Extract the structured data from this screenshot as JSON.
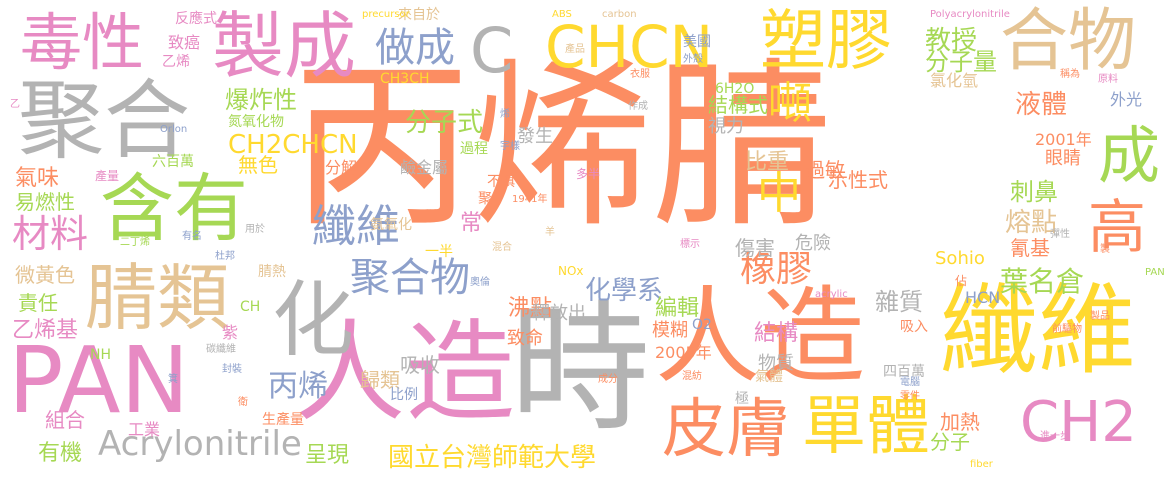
{
  "cloud": {
    "words": [
      {
        "text": "丙烯腈",
        "color": "#fc8d62"
      },
      {
        "text": "時",
        "color": "#b3b3b3"
      },
      {
        "text": "人造",
        "color": "#e78ac3"
      },
      {
        "text": "纖維",
        "color": "#ffd92f"
      },
      {
        "text": "PAN",
        "color": "#e78ac3"
      },
      {
        "text": "人造",
        "color": "#fc8d62"
      },
      {
        "text": "聚合",
        "color": "#b3b3b3"
      },
      {
        "text": "含有",
        "color": "#a6d854"
      },
      {
        "text": "毒性",
        "color": "#e78ac3"
      },
      {
        "text": "製成",
        "color": "#e78ac3"
      },
      {
        "text": "腈類",
        "color": "#e5c494"
      },
      {
        "text": "化",
        "color": "#b3b3b3"
      },
      {
        "text": "C",
        "color": "#b3b3b3"
      },
      {
        "text": "CHCN",
        "color": "#ffd92f"
      },
      {
        "text": "塑膠",
        "color": "#ffd92f"
      },
      {
        "text": "合物",
        "color": "#e5c494"
      },
      {
        "text": "成",
        "color": "#a6d854"
      },
      {
        "text": "高",
        "color": "#fc8d62"
      },
      {
        "text": "皮膚",
        "color": "#fc8d62"
      },
      {
        "text": "單體",
        "color": "#ffd92f"
      },
      {
        "text": "CH2",
        "color": "#e78ac3"
      },
      {
        "text": "做成",
        "color": "#8da0cb"
      },
      {
        "text": "噸",
        "color": "#ffd92f"
      },
      {
        "text": "中",
        "color": "#ffd92f"
      },
      {
        "text": "纖維",
        "color": "#8da0cb"
      },
      {
        "text": "聚合物",
        "color": "#8da0cb"
      },
      {
        "text": "橡膠",
        "color": "#fc8d62"
      },
      {
        "text": "材料",
        "color": "#e78ac3"
      },
      {
        "text": "Acrylonitrile",
        "color": "#b3b3b3"
      },
      {
        "text": "丙烯",
        "color": "#8da0cb"
      },
      {
        "text": "國立台灣師範大學",
        "color": "#ffd92f"
      },
      {
        "text": "分子式",
        "color": "#a6d854"
      },
      {
        "text": "CH2CHCN",
        "color": "#ffd92f"
      },
      {
        "text": "化學系",
        "color": "#8da0cb"
      },
      {
        "text": "爆炸性",
        "color": "#a6d854"
      },
      {
        "text": "教授",
        "color": "#a6d854"
      },
      {
        "text": "分子量",
        "color": "#a6d854"
      },
      {
        "text": "液體",
        "color": "#fc8d62"
      },
      {
        "text": "刺鼻",
        "color": "#a6d854"
      },
      {
        "text": "熔點",
        "color": "#e5c494"
      },
      {
        "text": "葉名倉",
        "color": "#a6d854"
      },
      {
        "text": "雜質",
        "color": "#b3b3b3"
      },
      {
        "text": "沸點",
        "color": "#fc8d62"
      },
      {
        "text": "編輯",
        "color": "#a6d854"
      },
      {
        "text": "結構",
        "color": "#e78ac3"
      },
      {
        "text": "結構式",
        "color": "#a6d854"
      },
      {
        "text": "氣味",
        "color": "#fc8d62"
      },
      {
        "text": "易燃性",
        "color": "#a6d854"
      },
      {
        "text": "微黃色",
        "color": "#e5c494"
      },
      {
        "text": "責任",
        "color": "#a6d854"
      },
      {
        "text": "乙烯基",
        "color": "#e78ac3"
      },
      {
        "text": "組合",
        "color": "#e78ac3"
      },
      {
        "text": "有機",
        "color": "#a6d854"
      },
      {
        "text": "工業",
        "color": "#e78ac3"
      },
      {
        "text": "呈現",
        "color": "#a6d854"
      },
      {
        "text": "比重",
        "color": "#e5c494"
      },
      {
        "text": "無色",
        "color": "#ffd92f"
      },
      {
        "text": "加熱",
        "color": "#fc8d62"
      },
      {
        "text": "分子",
        "color": "#a6d854"
      },
      {
        "text": "Sohio",
        "color": "#ffd92f"
      },
      {
        "text": "HCN",
        "color": "#8da0cb"
      },
      {
        "text": "氰基",
        "color": "#fc8d62"
      },
      {
        "text": "過敏",
        "color": "#fc8d62"
      },
      {
        "text": "傷害",
        "color": "#b3b3b3"
      },
      {
        "text": "危險",
        "color": "#b3b3b3"
      },
      {
        "text": "示性式",
        "color": "#fc8d62"
      },
      {
        "text": "分解",
        "color": "#fc8d62"
      },
      {
        "text": "吸收",
        "color": "#b3b3b3"
      },
      {
        "text": "歸類",
        "color": "#e5c494"
      },
      {
        "text": "物質",
        "color": "#b3b3b3"
      },
      {
        "text": "模糊",
        "color": "#fc8d62"
      },
      {
        "text": "2005年",
        "color": "#fc8d62"
      },
      {
        "text": "2001年",
        "color": "#fc8d62"
      },
      {
        "text": "眼睛",
        "color": "#fc8d62"
      },
      {
        "text": "視力",
        "color": "#b3b3b3"
      },
      {
        "text": "發生",
        "color": "#b3b3b3"
      },
      {
        "text": "過程",
        "color": "#a6d854"
      },
      {
        "text": "鹼金屬",
        "color": "#b3b3b3"
      },
      {
        "text": "常",
        "color": "#e78ac3"
      },
      {
        "text": "6H2O",
        "color": "#a6d854"
      },
      {
        "text": "O2",
        "color": "#8da0cb"
      },
      {
        "text": "致命",
        "color": "#fc8d62"
      },
      {
        "text": "釋放出",
        "color": "#b3b3b3"
      },
      {
        "text": "氯化氫",
        "color": "#e5c494"
      },
      {
        "text": "外光",
        "color": "#8da0cb"
      },
      {
        "text": "美國",
        "color": "#8da0cb"
      },
      {
        "text": "來自於",
        "color": "#e5c494"
      },
      {
        "text": "CH3CH",
        "color": "#ffd92f"
      },
      {
        "text": "反應式",
        "color": "#e78ac3"
      },
      {
        "text": "致癌",
        "color": "#e78ac3"
      },
      {
        "text": "乙烯",
        "color": "#e78ac3"
      },
      {
        "text": "氮氧化物",
        "color": "#a6d854"
      },
      {
        "text": "六百萬",
        "color": "#a6d854"
      },
      {
        "text": "產量",
        "color": "#e78ac3"
      },
      {
        "text": "腈熱",
        "color": "#e5c494"
      },
      {
        "text": "紫",
        "color": "#e78ac3"
      },
      {
        "text": "生產量",
        "color": "#fc8d62"
      },
      {
        "text": "比例",
        "color": "#8da0cb"
      },
      {
        "text": "四百萬",
        "color": "#b3b3b3"
      },
      {
        "text": "氣體",
        "color": "#e5c494"
      },
      {
        "text": "極",
        "color": "#b3b3b3"
      },
      {
        "text": "吸入",
        "color": "#fc8d62"
      },
      {
        "text": "一半",
        "color": "#ffd92f"
      },
      {
        "text": "NOx",
        "color": "#ffd92f"
      },
      {
        "text": "多半",
        "color": "#e78ac3"
      },
      {
        "text": "不慎",
        "color": "#fc8d62"
      },
      {
        "text": "氨氧化",
        "color": "#e5c494"
      },
      {
        "text": "CH",
        "color": "#a6d854"
      },
      {
        "text": "NH",
        "color": "#a6d854"
      },
      {
        "text": "precursor",
        "color": "#ffd92f"
      },
      {
        "text": "ABS",
        "color": "#ffd92f"
      },
      {
        "text": "carbon",
        "color": "#e5c494"
      },
      {
        "text": "Polyacrylonitrile",
        "color": "#e78ac3"
      },
      {
        "text": "acrylic",
        "color": "#e78ac3"
      },
      {
        "text": "Orlon",
        "color": "#8da0cb"
      },
      {
        "text": "fiber",
        "color": "#ffd92f"
      },
      {
        "text": "PAN",
        "color": "#a6d854"
      },
      {
        "text": "產品",
        "color": "#e5c494"
      },
      {
        "text": "外殼",
        "color": "#8da0cb"
      },
      {
        "text": "衣服",
        "color": "#fc8d62"
      },
      {
        "text": "稱為",
        "color": "#fc8d62"
      },
      {
        "text": "原料",
        "color": "#e78ac3"
      },
      {
        "text": "作成",
        "color": "#b3b3b3"
      },
      {
        "text": "宇樣",
        "color": "#8da0cb"
      },
      {
        "text": "1941年",
        "color": "#fc8d62"
      },
      {
        "text": "二丁烯",
        "color": "#a6d854"
      },
      {
        "text": "有名",
        "color": "#8da0cb"
      },
      {
        "text": "杜邦",
        "color": "#8da0cb"
      },
      {
        "text": "用於",
        "color": "#b3b3b3"
      },
      {
        "text": "混合",
        "color": "#e5c494"
      },
      {
        "text": "標示",
        "color": "#e78ac3"
      },
      {
        "text": "彈性",
        "color": "#b3b3b3"
      },
      {
        "text": "製品",
        "color": "#fc8d62"
      },
      {
        "text": "前驅物",
        "color": "#fc8d62"
      },
      {
        "text": "成分",
        "color": "#fc8d62"
      },
      {
        "text": "混紡",
        "color": "#fc8d62"
      },
      {
        "text": "電腦",
        "color": "#8da0cb"
      },
      {
        "text": "零件",
        "color": "#fc8d62"
      },
      {
        "text": "進一步",
        "color": "#e78ac3"
      },
      {
        "text": "碳纖維",
        "color": "#b3b3b3"
      },
      {
        "text": "封裝",
        "color": "#8da0cb"
      },
      {
        "text": "奧倫",
        "color": "#8da0cb"
      },
      {
        "text": "烯",
        "color": "#8da0cb"
      },
      {
        "text": "聚",
        "color": "#fc8d62"
      },
      {
        "text": "乙",
        "color": "#e78ac3"
      },
      {
        "text": "羊",
        "color": "#e5c494"
      },
      {
        "text": "佔",
        "color": "#fc8d62"
      },
      {
        "text": "製",
        "color": "#fc8d62"
      },
      {
        "text": "箕",
        "color": "#8da0cb"
      },
      {
        "text": "衛",
        "color": "#fc8d62"
      }
    ]
  }
}
